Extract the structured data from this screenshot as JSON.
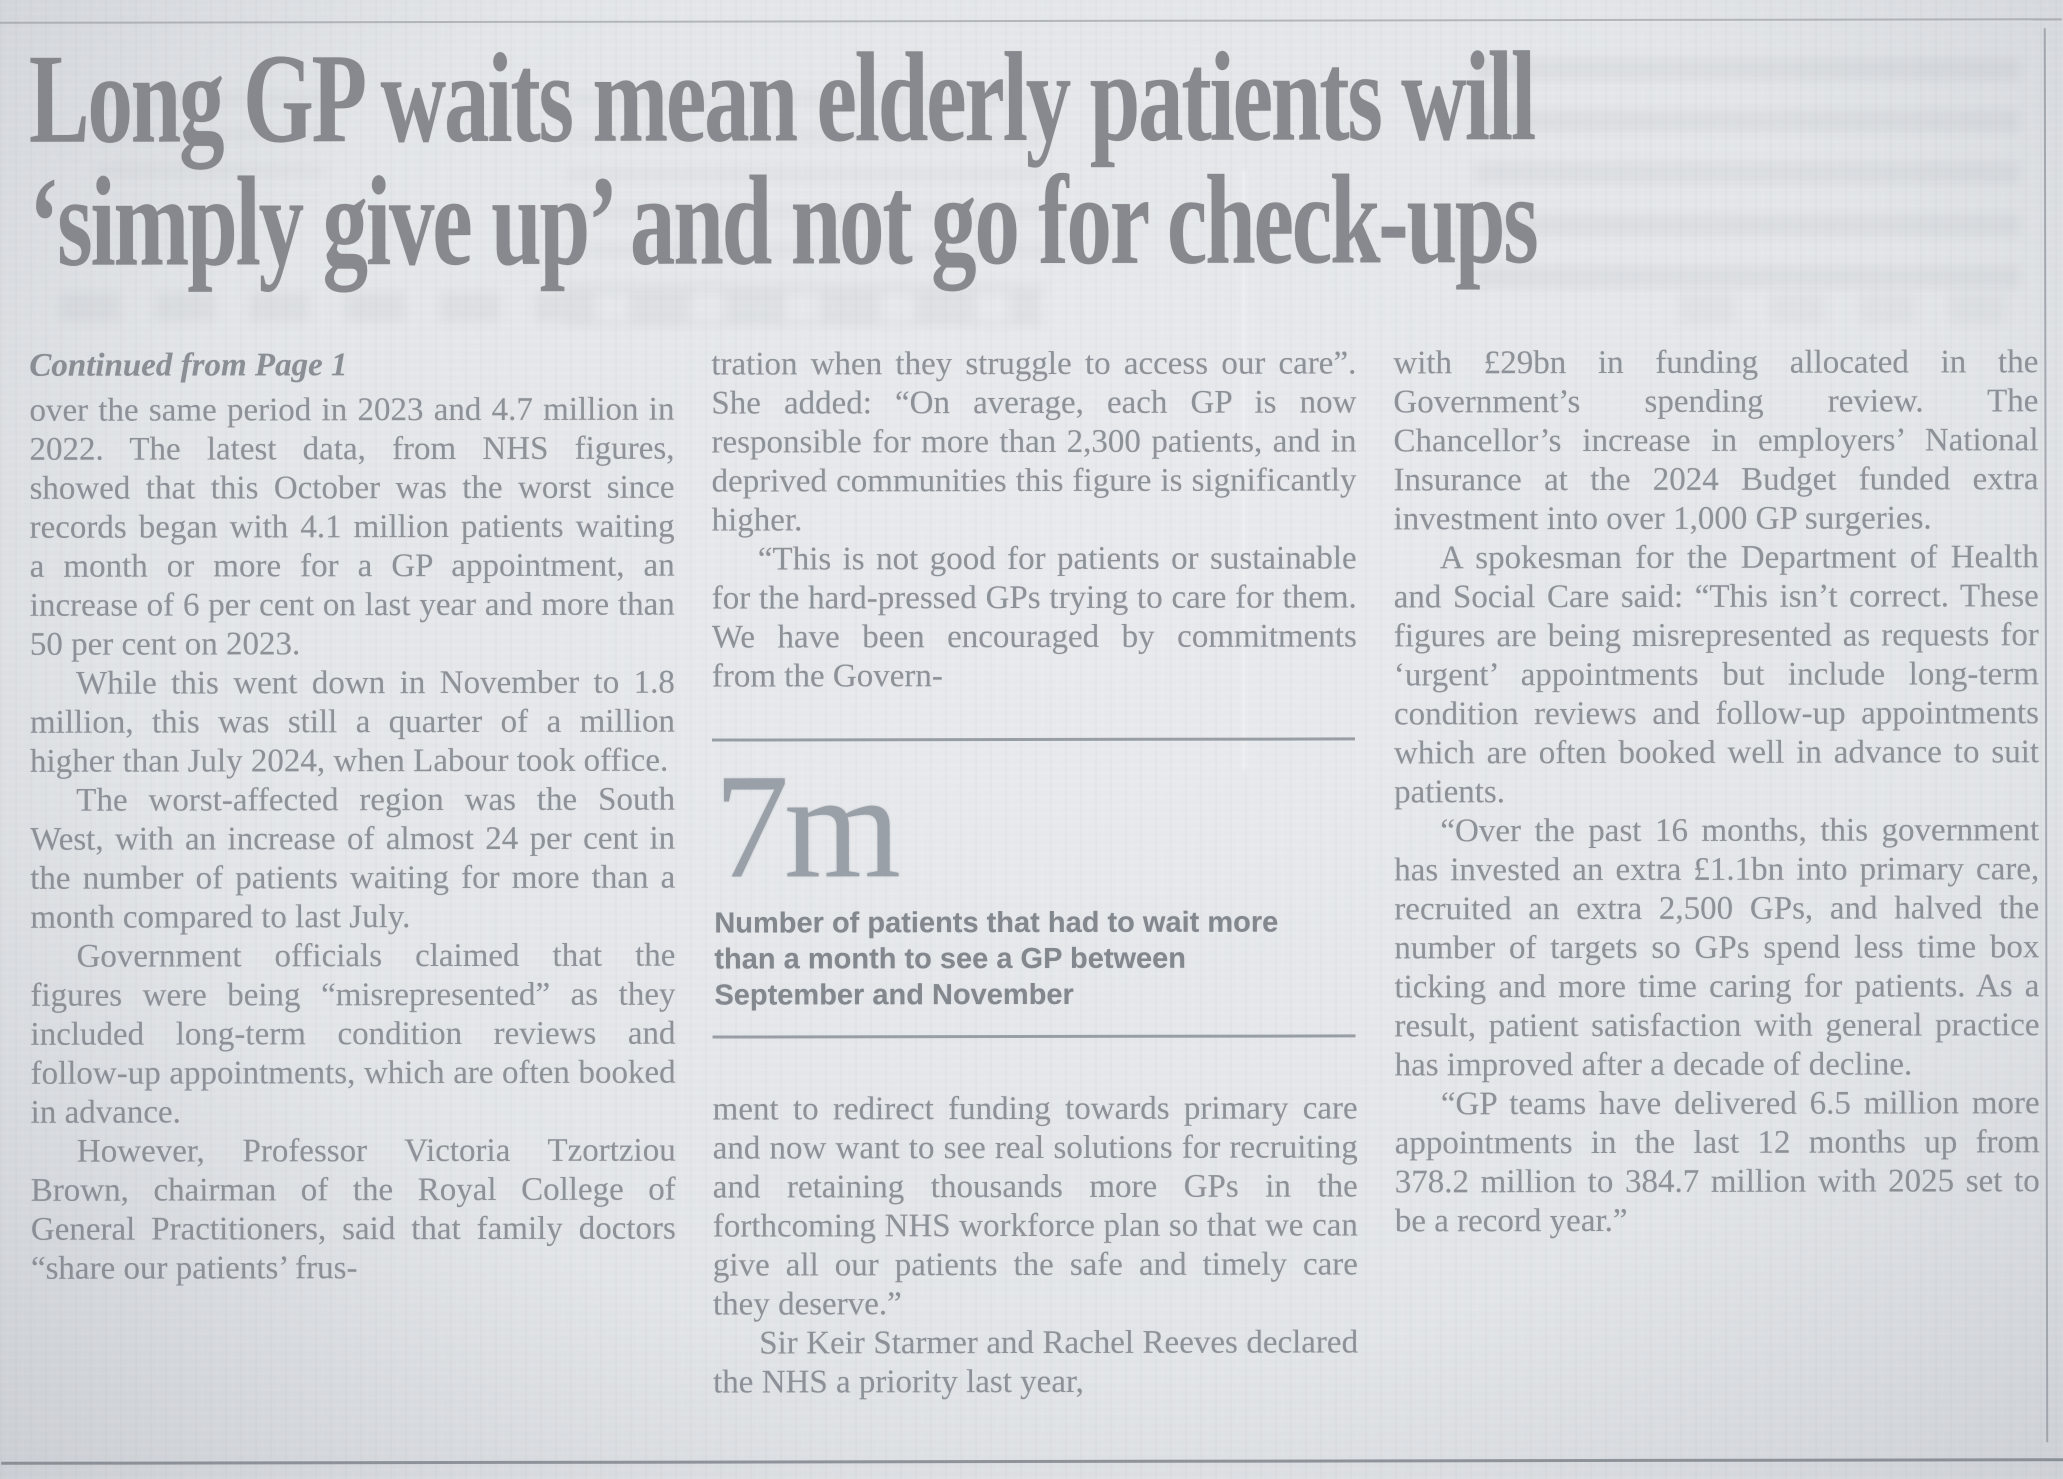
{
  "colors": {
    "paper": "#e4e7ea",
    "body_ink": "#8d9198",
    "headline_ink": "#87898e",
    "stat_ink": "#9aa0a8",
    "caption_ink": "#83878e",
    "rule": "#a9adb2"
  },
  "headline": {
    "lines": [
      "Long GP waits mean elderly patients will",
      "‘simply give up’ and not go for check-ups"
    ]
  },
  "article": {
    "continued_label": "Continued from Page 1",
    "column1_paragraphs": [
      "over the same period in 2023 and 4.7 million in 2022. The latest data, from NHS figures, showed that this October was the worst since records began with 4.1 million patients waiting a month or more for a GP appointment, an increase of 6 per cent on last year and more than 50 per cent on 2023.",
      "While this went down in November to 1.8 million, this was still a quarter of a million higher than July 2024, when Labour took office.",
      "The worst-affected region was the South West, with an increase of almost 24 per cent in the number of patients waiting for more than a month compared to last July.",
      "Government officials claimed that the figures were being “misrepresented” as they included long-term condition reviews and follow-up appointments, which are often booked in advance.",
      "However, Professor Victoria Tzortziou Brown, chairman of the Royal College of General Practitioners, said that family doctors “share our patients’ frus-"
    ],
    "column2_upper_paragraphs": [
      "tration when they struggle to access our care”. She added: “On average, each GP is now responsible for more than 2,300 patients, and in deprived communities this figure is significantly higher.",
      "“This is not good for patients or sustainable for the hard-pressed GPs trying to care for them. We have been encouraged by commitments from the Govern-"
    ],
    "column2_lower_paragraphs": [
      "ment to redirect funding towards primary care and now want to see real solutions for recruiting and retaining thousands more GPs in the forthcoming NHS workforce plan so that we can give all our patients the safe and timely care they deserve.”",
      "Sir Keir Starmer and Rachel Reeves declared the NHS a priority last year,"
    ],
    "column3_paragraphs": [
      "with £29bn in funding allocated in the Government’s spending review. The Chancellor’s increase in employers’ National Insurance at the 2024 Budget funded extra investment into over 1,000 GP surgeries.",
      "A spokesman for the Department of Health and Social Care said: “This isn’t correct. These figures are being misrepresented as requests for ‘urgent’ appointments but include long-term condition reviews and follow-up appointments which are often booked well in advance to suit patients.",
      "“Over the past 16 months, this government has invested an extra £1.1bn into primary care, recruited an extra 2,500 GPs, and halved the number of targets so GPs spend less time box ticking and more time caring for patients. As a result, patient satisfaction with general practice has improved after a decade of decline.",
      "“GP teams have delivered 6.5 million more appointments in the last 12 months up from 378.2 million to 384.7 million with 2025 set to be a record year.”"
    ]
  },
  "stat_box": {
    "value": "7m",
    "caption": "Number of patients that had to wait more than a month to see a GP between September and November"
  }
}
